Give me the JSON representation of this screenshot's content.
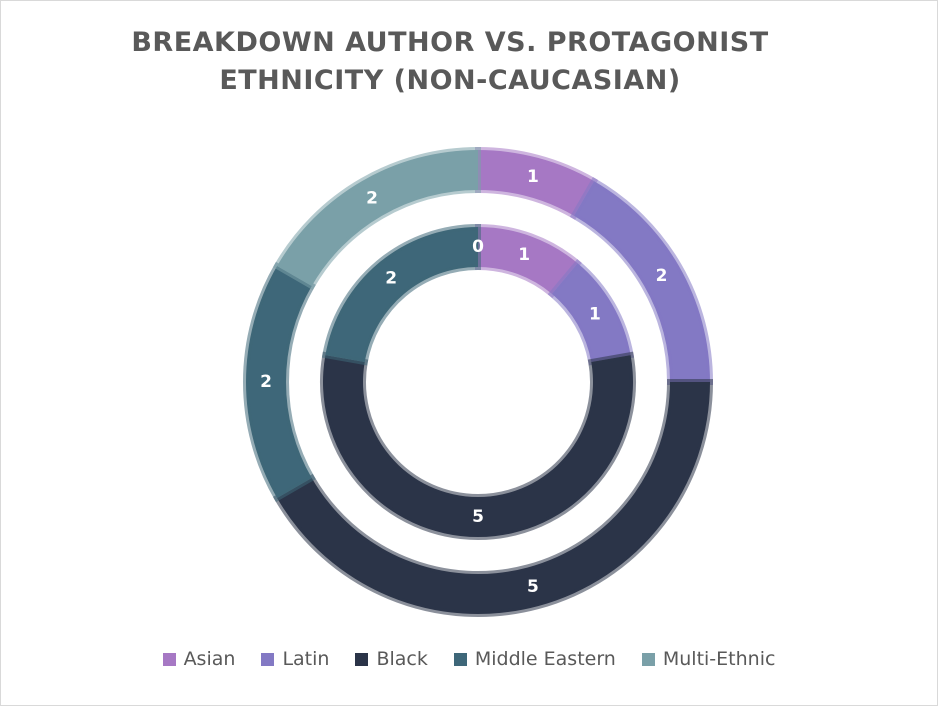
{
  "chart_data": {
    "type": "donut",
    "title": "BREAKDOWN AUTHOR VS. PROTAGONIST ETHNICITY (NON-CAUCASIAN)",
    "categories": [
      "Asian",
      "Latin",
      "Black",
      "Middle Eastern",
      "Multi-Ethnic"
    ],
    "colors": [
      "#A678C4",
      "#8379C4",
      "#2B3448",
      "#3E6779",
      "#7AA0A8"
    ],
    "series": [
      {
        "ring": "inner",
        "values": [
          1,
          1,
          5,
          2,
          0
        ]
      },
      {
        "ring": "outer",
        "values": [
          1,
          2,
          5,
          2,
          2
        ]
      }
    ],
    "legend_position": "bottom"
  }
}
